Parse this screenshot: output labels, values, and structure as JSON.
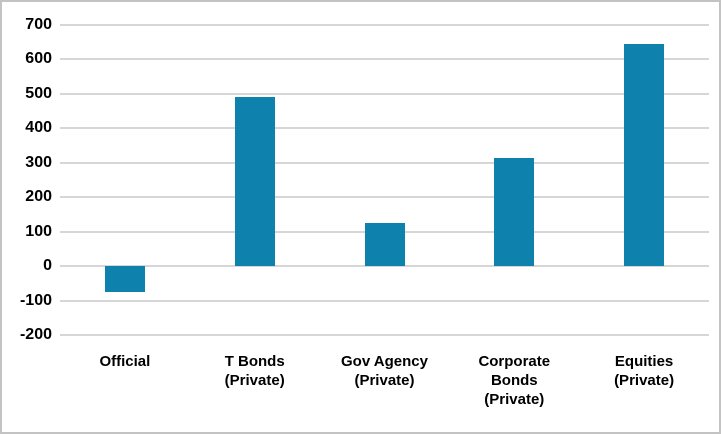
{
  "chart_data": {
    "type": "bar",
    "categories": [
      "Official",
      "T Bonds\n(Private)",
      "Gov Agency\n(Private)",
      "Corporate\nBonds\n(Private)",
      "Equities\n(Private)"
    ],
    "values": [
      -75,
      490,
      125,
      315,
      645
    ],
    "title": "",
    "xlabel": "",
    "ylabel": "",
    "ylim": [
      -200,
      700
    ],
    "ytick_interval": 100,
    "ytick_labels": [
      "700",
      "600",
      "500",
      "400",
      "300",
      "200",
      "100",
      "0",
      "-100",
      "-200"
    ],
    "grid": true,
    "legend": false,
    "bar_color": "#0e81ad",
    "gridline_color": "#d6d6d6",
    "frame_color": "#c3c3c3",
    "text_color": "#000000"
  }
}
